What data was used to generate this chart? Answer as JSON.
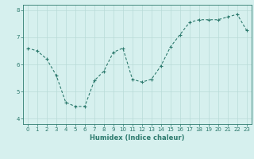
{
  "x": [
    0,
    1,
    2,
    3,
    4,
    5,
    6,
    7,
    8,
    9,
    10,
    11,
    12,
    13,
    14,
    15,
    16,
    17,
    18,
    19,
    20,
    21,
    22,
    23
  ],
  "y": [
    6.6,
    6.5,
    6.2,
    5.6,
    4.6,
    4.45,
    4.45,
    5.4,
    5.75,
    6.45,
    6.6,
    5.45,
    5.35,
    5.45,
    5.95,
    6.65,
    7.1,
    7.55,
    7.65,
    7.65,
    7.65,
    7.75,
    7.85,
    7.25
  ],
  "line_color": "#2d7a6e",
  "marker": "+",
  "marker_size": 3,
  "bg_color": "#d6f0ee",
  "grid_color": "#b8dbd8",
  "xlabel": "Humidex (Indice chaleur)",
  "ylim": [
    3.8,
    8.2
  ],
  "xlim": [
    -0.5,
    23.5
  ],
  "yticks": [
    4,
    5,
    6,
    7,
    8
  ],
  "xticks": [
    0,
    1,
    2,
    3,
    4,
    5,
    6,
    7,
    8,
    9,
    10,
    11,
    12,
    13,
    14,
    15,
    16,
    17,
    18,
    19,
    20,
    21,
    22,
    23
  ],
  "axis_color": "#2d7a6e",
  "tick_color": "#2d7a6e",
  "label_color": "#2d7a6e",
  "xlabel_fontsize": 6.0,
  "tick_fontsize": 5.0,
  "linewidth": 0.8,
  "markeredgewidth": 0.8
}
